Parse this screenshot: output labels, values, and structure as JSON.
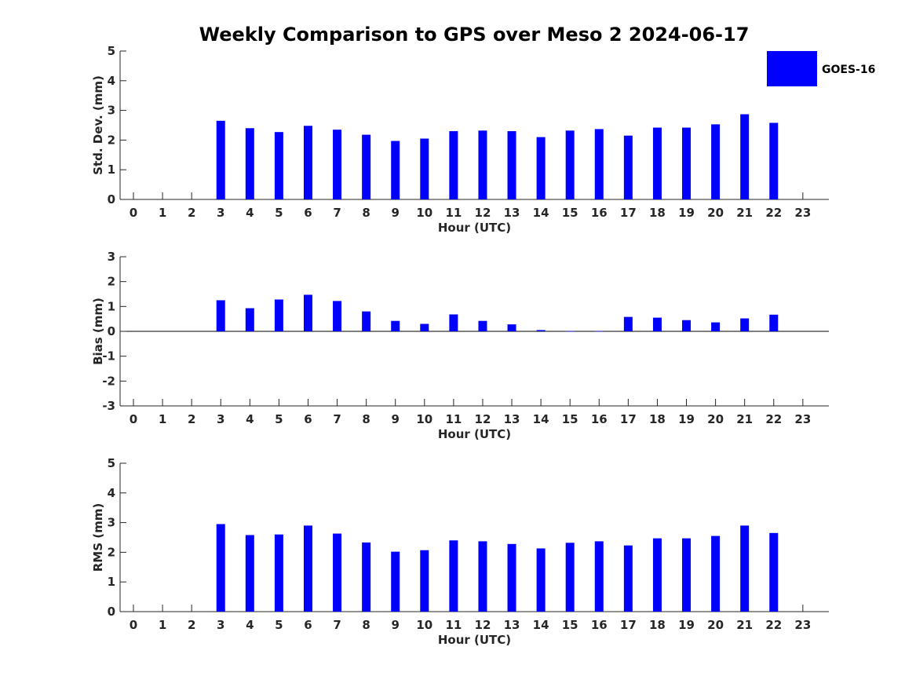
{
  "title": "Weekly Comparison to GPS over Meso 2 2024-06-17",
  "legend": {
    "label": "GOES-16",
    "color": "#0000ff"
  },
  "chart_data": [
    {
      "type": "bar",
      "name": "std-dev",
      "ylabel": "Std. Dev. (mm)",
      "xlabel": "Hour (UTC)",
      "ylim": [
        0,
        5
      ],
      "yticks": [
        0,
        1,
        2,
        3,
        4,
        5
      ],
      "categories": [
        "0",
        "1",
        "2",
        "3",
        "4",
        "5",
        "6",
        "7",
        "8",
        "9",
        "10",
        "11",
        "12",
        "13",
        "14",
        "15",
        "16",
        "17",
        "18",
        "19",
        "20",
        "21",
        "22",
        "23"
      ],
      "series": [
        {
          "name": "GOES-16",
          "color": "#0000ff",
          "values": [
            null,
            null,
            null,
            2.65,
            2.4,
            2.27,
            2.48,
            2.35,
            2.18,
            1.97,
            2.05,
            2.3,
            2.32,
            2.3,
            2.1,
            2.32,
            2.37,
            2.15,
            2.42,
            2.42,
            2.53,
            2.87,
            2.58,
            null
          ]
        }
      ]
    },
    {
      "type": "bar",
      "name": "bias",
      "ylabel": "Bias (mm)",
      "xlabel": "Hour (UTC)",
      "ylim": [
        -3,
        3
      ],
      "yticks": [
        -3,
        -2,
        -1,
        0,
        1,
        2,
        3
      ],
      "categories": [
        "0",
        "1",
        "2",
        "3",
        "4",
        "5",
        "6",
        "7",
        "8",
        "9",
        "10",
        "11",
        "12",
        "13",
        "14",
        "15",
        "16",
        "17",
        "18",
        "19",
        "20",
        "21",
        "22",
        "23"
      ],
      "series": [
        {
          "name": "GOES-16",
          "color": "#0000ff",
          "values": [
            null,
            null,
            null,
            1.25,
            0.93,
            1.28,
            1.47,
            1.22,
            0.8,
            0.42,
            0.3,
            0.68,
            0.42,
            0.28,
            0.05,
            0.01,
            0.01,
            0.58,
            0.55,
            0.45,
            0.36,
            0.52,
            0.67,
            null
          ]
        }
      ]
    },
    {
      "type": "bar",
      "name": "rms",
      "ylabel": "RMS (mm)",
      "xlabel": "Hour (UTC)",
      "ylim": [
        0,
        5
      ],
      "yticks": [
        0,
        1,
        2,
        3,
        4,
        5
      ],
      "categories": [
        "0",
        "1",
        "2",
        "3",
        "4",
        "5",
        "6",
        "7",
        "8",
        "9",
        "10",
        "11",
        "12",
        "13",
        "14",
        "15",
        "16",
        "17",
        "18",
        "19",
        "20",
        "21",
        "22",
        "23"
      ],
      "series": [
        {
          "name": "GOES-16",
          "color": "#0000ff",
          "values": [
            null,
            null,
            null,
            2.95,
            2.58,
            2.6,
            2.9,
            2.63,
            2.33,
            2.02,
            2.07,
            2.4,
            2.37,
            2.28,
            2.13,
            2.32,
            2.37,
            2.23,
            2.47,
            2.47,
            2.55,
            2.9,
            2.65,
            null
          ]
        }
      ]
    }
  ]
}
